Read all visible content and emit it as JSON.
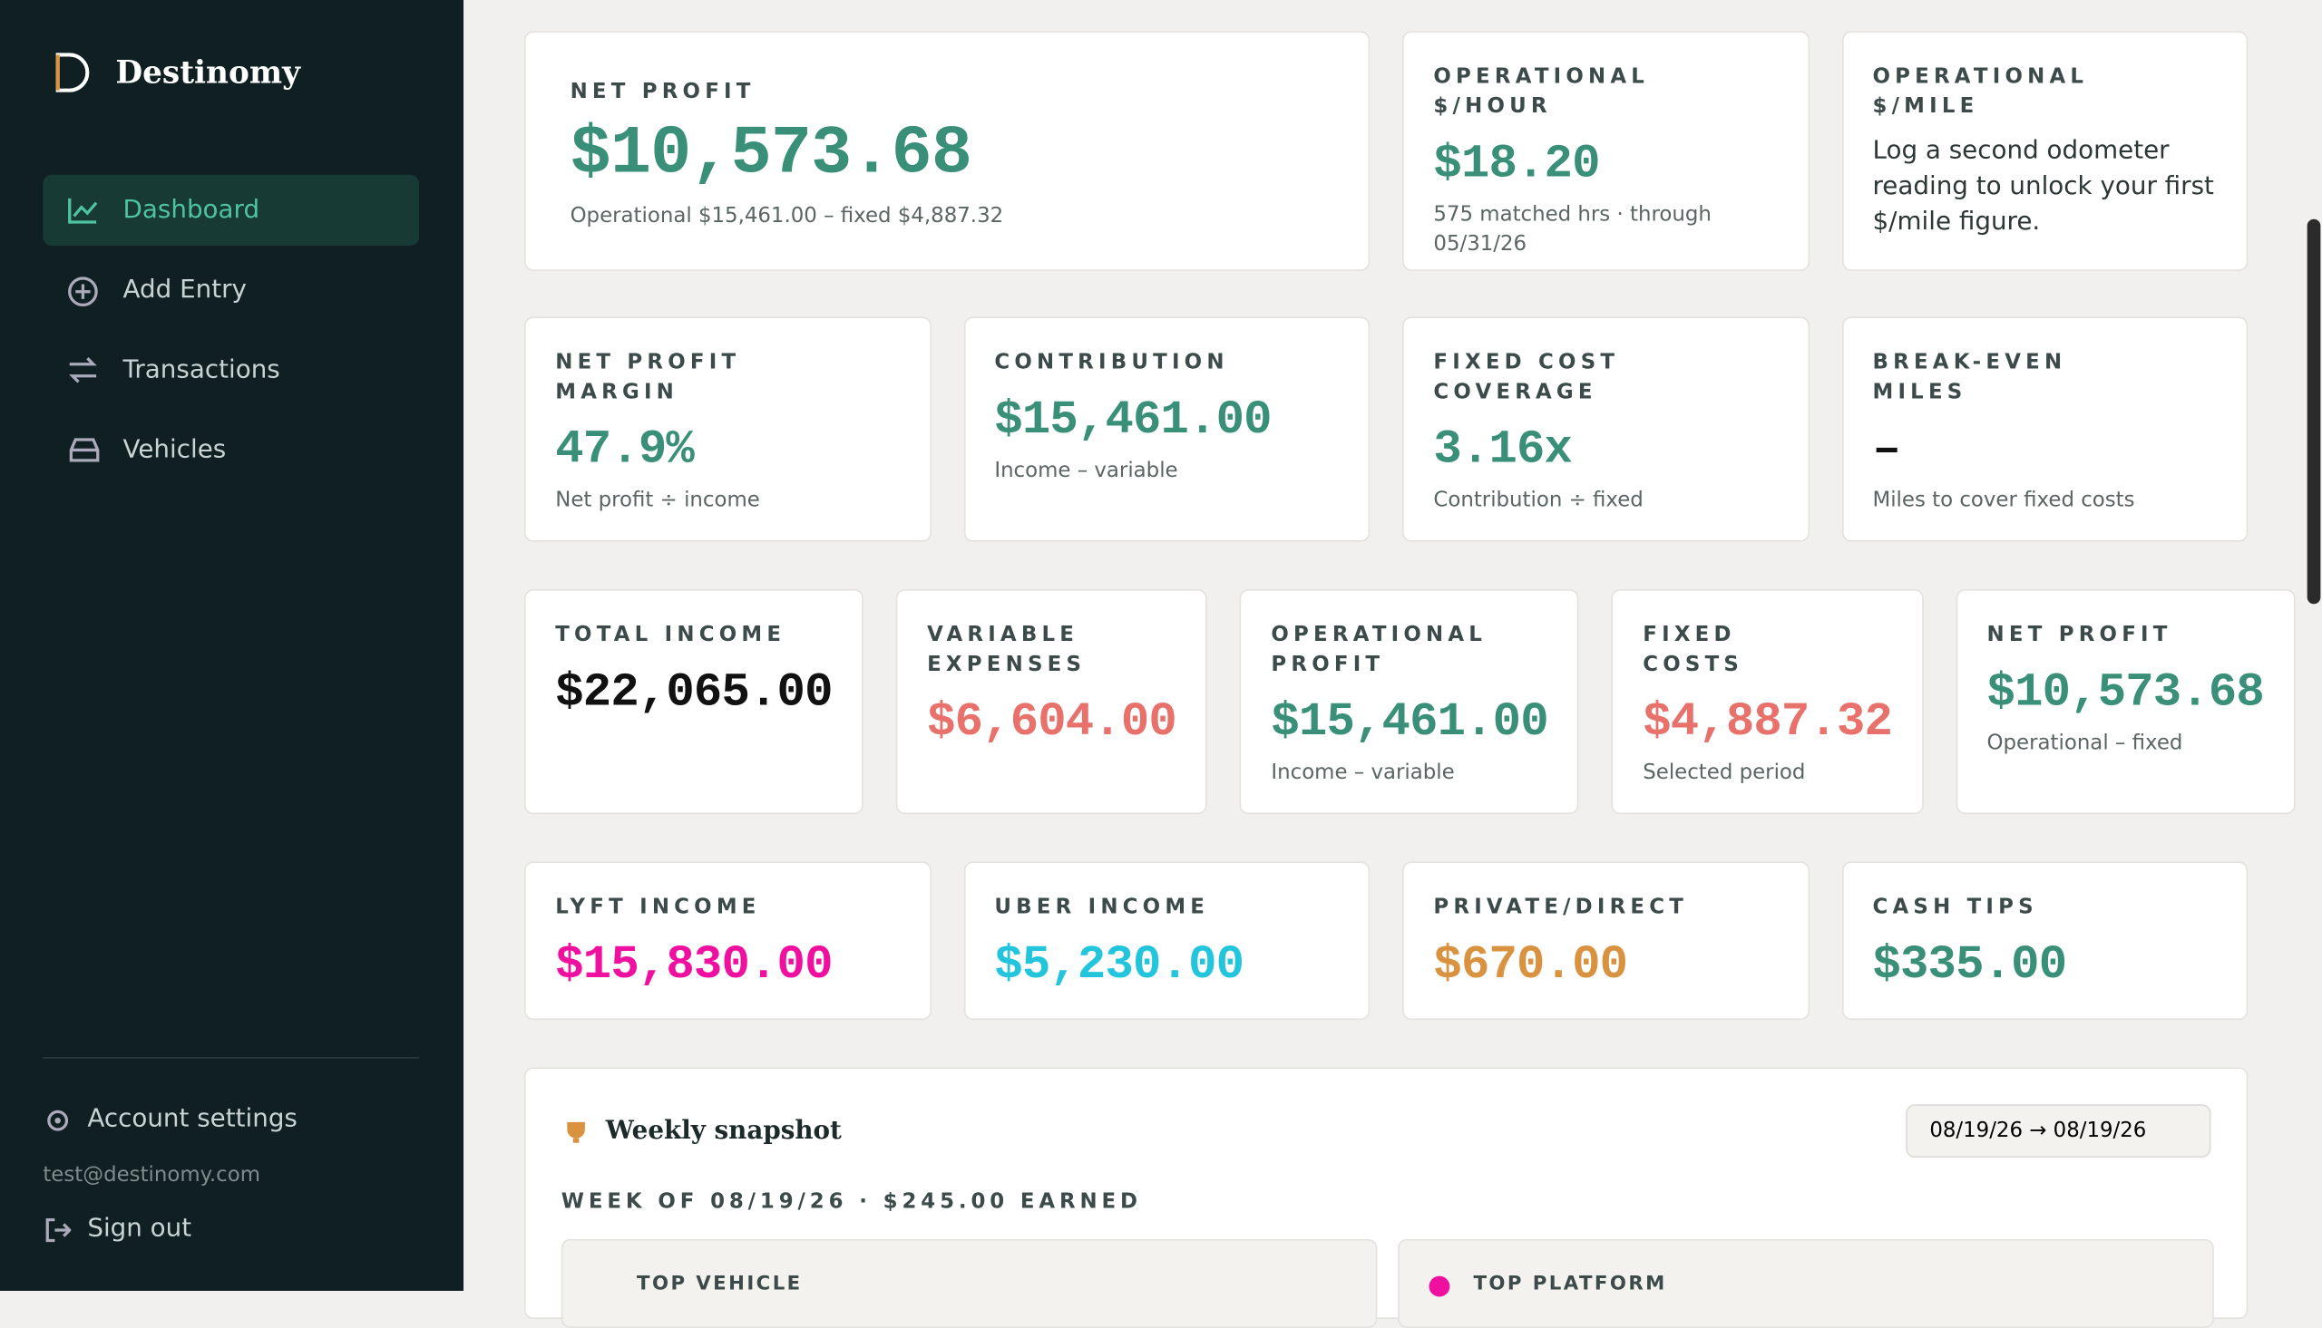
{
  "sidebar": {
    "brand": "Destinomy",
    "nav": [
      "Dashboard",
      "Add Entry",
      "Transactions",
      "Vehicles"
    ],
    "account_settings": "Account settings",
    "email": "test@destinomy.com",
    "sign_out": "Sign out"
  },
  "rows": [
    [
      {
        "label": "NET PROFIT",
        "value": "$10,573.68",
        "note": "Operational $15,461.00 – fixed $4,887.32",
        "color": "#3a8f78"
      },
      {
        "label": "OPERATIONAL $/HOUR",
        "value": "$18.20",
        "note": "575 matched hrs · through 05/31/26",
        "color": "#3a8f78"
      },
      {
        "label": "OPERATIONAL $/MILE",
        "text": "Log a second odometer reading to unlock your first $/mile figure."
      }
    ],
    [
      {
        "label": "NET PROFIT MARGIN",
        "value": "47.9%",
        "note": "Net profit ÷ income",
        "color": "#3a8f78"
      },
      {
        "label": "CONTRIBUTION",
        "value": "$15,461.00",
        "note": "Income – variable",
        "color": "#3a8f78"
      },
      {
        "label": "FIXED COST COVERAGE",
        "value": "3.16x",
        "note": "Contribution ÷ fixed",
        "color": "#3a8f78"
      },
      {
        "label": "BREAK-EVEN MILES",
        "value": "–",
        "note": "Miles to cover fixed costs",
        "color": "#111111"
      }
    ],
    [
      {
        "label": "TOTAL INCOME",
        "value": "$22,065.00",
        "color": "#111111"
      },
      {
        "label": "VARIABLE EXPENSES",
        "value": "$6,604.00",
        "color": "#e8716b"
      },
      {
        "label": "OPERATIONAL PROFIT",
        "value": "$15,461.00",
        "note": "Income – variable",
        "color": "#3a8f78"
      },
      {
        "label": "FIXED COSTS",
        "value": "$4,887.32",
        "note": "Selected period",
        "color": "#e8716b"
      },
      {
        "label": "NET PROFIT",
        "value": "$10,573.68",
        "note": "Operational – fixed",
        "color": "#3a8f78"
      }
    ],
    [
      {
        "label": "LYFT INCOME",
        "value": "$15,830.00",
        "color": "#f0109f"
      },
      {
        "label": "UBER INCOME",
        "value": "$5,230.00",
        "color": "#22c5dc"
      },
      {
        "label": "PRIVATE/DIRECT",
        "value": "$670.00",
        "color": "#d9923f"
      },
      {
        "label": "CASH TIPS",
        "value": "$335.00",
        "color": "#3a8f78"
      }
    ]
  ],
  "snapshot": {
    "title": "Weekly snapshot",
    "range": "08/19/26 → 08/19/26",
    "week": "WEEK OF 08/19/26 · $245.00 EARNED",
    "tiles": [
      "TOP VEHICLE",
      "TOP PLATFORM"
    ]
  }
}
